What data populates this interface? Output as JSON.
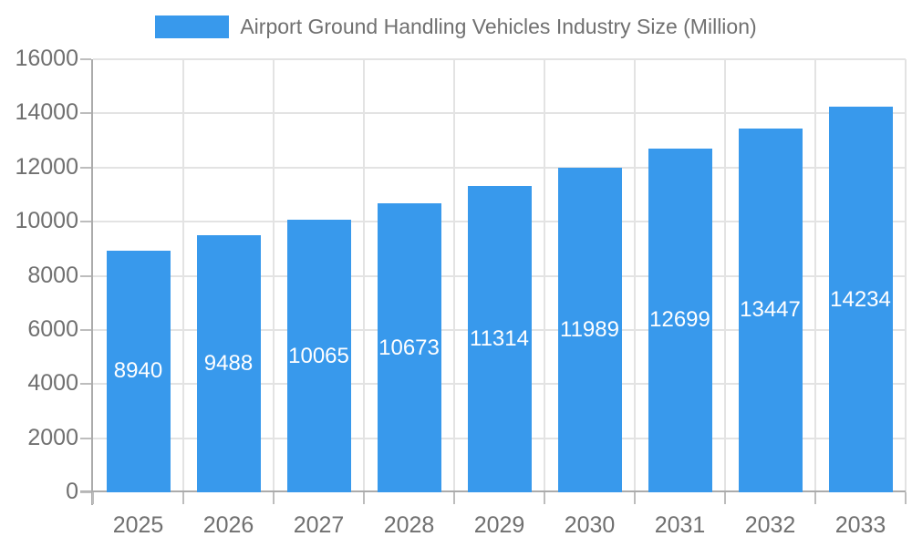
{
  "legend": {
    "label": "Airport Ground Handling Vehicles Industry Size (Million)"
  },
  "colors": {
    "bar": "#3899EC",
    "gridline": "#E3E3E3",
    "axis_line": "#ABABAB",
    "tick": "#BDBDBD",
    "axis_text": "#707070",
    "bar_label_text": "#FFFFFF"
  },
  "chart_data": {
    "type": "bar",
    "title": "Airport Ground Handling Vehicles Industry Size (Million)",
    "categories": [
      "2025",
      "2026",
      "2027",
      "2028",
      "2029",
      "2030",
      "2031",
      "2032",
      "2033"
    ],
    "values": [
      8940,
      9488,
      10065,
      10673,
      11314,
      11989,
      12699,
      13447,
      14234
    ],
    "xlabel": "",
    "ylabel": "",
    "ylim": [
      0,
      16000
    ],
    "ytick_step": 2000,
    "ytick_labels": [
      "0",
      "2000",
      "4000",
      "6000",
      "8000",
      "10000",
      "12000",
      "14000",
      "16000"
    ],
    "grid": true,
    "legend_position": "top",
    "bar_labels_inside": true
  }
}
